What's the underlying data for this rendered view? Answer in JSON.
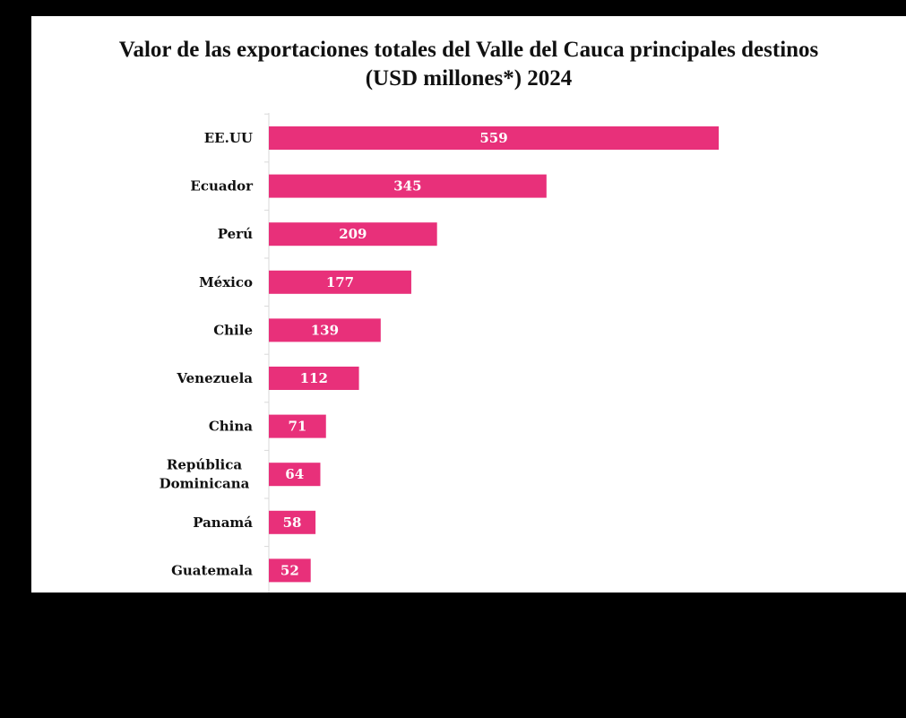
{
  "chart_data": {
    "type": "bar",
    "orientation": "horizontal",
    "title_lines": [
      "Valor de las exportaciones totales del Valle del Cauca principales destinos",
      "(USD millones*) 2024"
    ],
    "categories": [
      "EE.UU",
      "Ecuador",
      "Perú",
      "México",
      "Chile",
      "Venezuela",
      "China",
      "República Dominicana",
      "Panamá",
      "Guatemala"
    ],
    "category_label_lines": [
      [
        "EE.UU"
      ],
      [
        "Ecuador"
      ],
      [
        "Perú"
      ],
      [
        "México"
      ],
      [
        "Chile"
      ],
      [
        "Venezuela"
      ],
      [
        "China"
      ],
      [
        "República",
        "Dominicana"
      ],
      [
        "Panamá"
      ],
      [
        "Guatemala"
      ]
    ],
    "values": [
      559,
      345,
      209,
      177,
      139,
      112,
      71,
      64,
      58,
      52
    ],
    "data_labels": [
      "559",
      "345",
      "209",
      "177",
      "139",
      "112",
      "71",
      "64",
      "58",
      "52"
    ],
    "xlim": [
      0,
      620
    ],
    "bar_color": "#e8307a",
    "axis_color": "#d9d9d9",
    "grid": false,
    "legend": "none"
  }
}
